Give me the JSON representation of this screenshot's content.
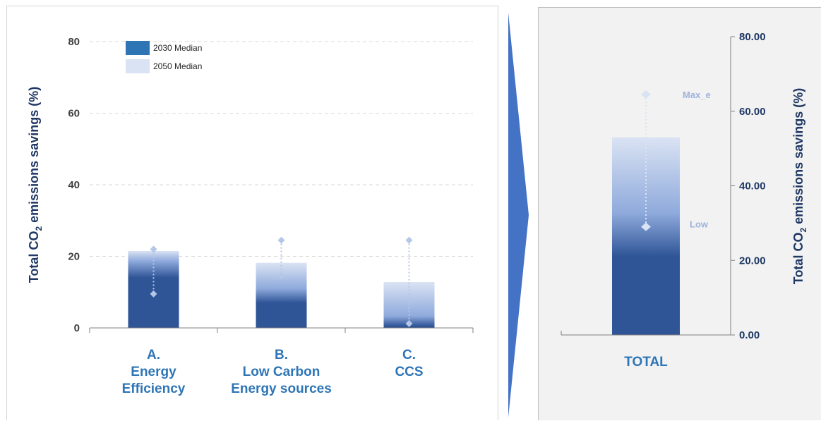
{
  "chart_data": [
    {
      "type": "bar",
      "ylabel": "Total CO2 emissions savings (%)",
      "ylim": [
        0,
        80
      ],
      "yticks": [
        "0",
        "20",
        "40",
        "60",
        "80"
      ],
      "grid": true,
      "legend": {
        "position": "top-left",
        "entries": [
          {
            "name": "2030 Median",
            "color": "#2f5597"
          },
          {
            "name": "2050 Median",
            "color": "#dae3f3"
          }
        ]
      },
      "categories": [
        {
          "id": "A",
          "lines": [
            "A.",
            "Energy",
            "Efficiency"
          ]
        },
        {
          "id": "B",
          "lines": [
            "B.",
            "Low Carbon",
            "Energy sources"
          ]
        },
        {
          "id": "C",
          "lines": [
            "C.",
            "CCS"
          ]
        }
      ],
      "series": [
        {
          "name": "2030 Median",
          "values": [
            14,
            7,
            0.5
          ]
        },
        {
          "name": "2050 Median",
          "values": [
            21.5,
            18.2,
            12.8
          ]
        }
      ],
      "ranges": [
        {
          "low": 9.5,
          "high": 22
        },
        {
          "low": 14.5,
          "high": 24.5
        },
        {
          "low": 1.2,
          "high": 24.5
        }
      ]
    },
    {
      "type": "bar",
      "ylabel": "Total CO2 emissions savings (%)",
      "ylim": [
        0,
        80
      ],
      "yticks": [
        "0.00",
        "20.00",
        "40.00",
        "60.00",
        "80.00"
      ],
      "yaxis_side": "right",
      "categories": [
        "TOTAL"
      ],
      "series": [
        {
          "name": "2030 Median",
          "values": [
            21
          ]
        },
        {
          "name": "2050 Median",
          "values": [
            53
          ]
        }
      ],
      "range": {
        "low": 29,
        "high": 64.5
      },
      "annotations": {
        "high_label": "Max_e",
        "low_label": "Low"
      }
    }
  ],
  "colors": {
    "dark": "#2f5597",
    "light": "#dae3f3",
    "mid": "#8faadc",
    "category_label": "#2e75b6",
    "axis_label": "#1f3864",
    "arrow": "#4472c4"
  }
}
